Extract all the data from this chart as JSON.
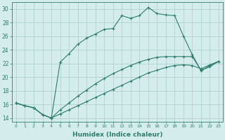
{
  "xlabel": "Humidex (Indice chaleur)",
  "xlim": [
    -0.5,
    23.5
  ],
  "ylim": [
    13.5,
    31
  ],
  "yticks": [
    14,
    16,
    18,
    20,
    22,
    24,
    26,
    28,
    30
  ],
  "xticks": [
    0,
    1,
    2,
    3,
    4,
    5,
    6,
    7,
    8,
    9,
    10,
    11,
    12,
    13,
    14,
    15,
    16,
    17,
    18,
    19,
    20,
    21,
    22,
    23
  ],
  "line_color": "#2e7d6e",
  "bg_color": "#d4ecec",
  "grid_color": "#aacccc",
  "line1_x": [
    0,
    1,
    2,
    3,
    4,
    5,
    6,
    7,
    8,
    9,
    10,
    11,
    12,
    13,
    14,
    15,
    16,
    17,
    18,
    19,
    20,
    21,
    22,
    23
  ],
  "line1_y": [
    16.2,
    15.8,
    15.5,
    14.5,
    14.0,
    22.2,
    23.4,
    24.8,
    25.7,
    26.3,
    27.0,
    27.1,
    29.0,
    28.6,
    29.0,
    30.2,
    29.3,
    29.1,
    29.0,
    26.0,
    23.3,
    20.9,
    21.7,
    22.3
  ],
  "line2_x": [
    0,
    1,
    2,
    3,
    4,
    5,
    6,
    7,
    8,
    9,
    10,
    11,
    12,
    13,
    14,
    15,
    16,
    17,
    18,
    19,
    20,
    21,
    22,
    23
  ],
  "line2_y": [
    16.2,
    15.8,
    15.5,
    14.5,
    14.0,
    15.2,
    16.2,
    17.2,
    18.1,
    19.0,
    19.8,
    20.5,
    21.1,
    21.7,
    22.2,
    22.6,
    22.9,
    23.0,
    23.0,
    23.0,
    23.0,
    21.0,
    21.5,
    22.3
  ],
  "line3_x": [
    0,
    1,
    2,
    3,
    4,
    5,
    6,
    7,
    8,
    9,
    10,
    11,
    12,
    13,
    14,
    15,
    16,
    17,
    18,
    19,
    20,
    21,
    22,
    23
  ],
  "line3_y": [
    16.2,
    15.8,
    15.5,
    14.5,
    14.0,
    14.6,
    15.2,
    15.8,
    16.4,
    17.0,
    17.6,
    18.2,
    18.8,
    19.4,
    20.0,
    20.6,
    21.0,
    21.4,
    21.7,
    21.8,
    21.7,
    21.2,
    21.8,
    22.3
  ]
}
